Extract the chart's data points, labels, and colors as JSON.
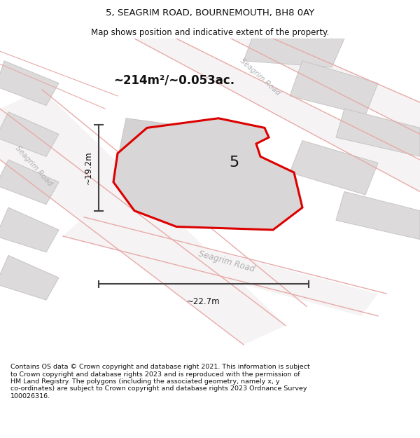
{
  "title_line1": "5, SEAGRIM ROAD, BOURNEMOUTH, BH8 0AY",
  "title_line2": "Map shows position and indicative extent of the property.",
  "area_text": "~214m²/~0.053ac.",
  "label_number": "5",
  "dim_width": "~22.7m",
  "dim_height": "~19.2m",
  "footer_text": "Contains OS data © Crown copyright and database right 2021. This information is subject to Crown copyright and database rights 2023 and is reproduced with the permission of HM Land Registry. The polygons (including the associated geometry, namely x, y co-ordinates) are subject to Crown copyright and database rights 2023 Ordnance Survey 100026316.",
  "map_bg": "#efeded",
  "road_fill_color": "#f5f3f3",
  "building_color": "#dcdada",
  "building_edge": "#c8c4c4",
  "road_line_color": "#e8aaaa",
  "plot_color": "#dd0000",
  "plot_fill": "#d8d6d6",
  "title_bg": "#ffffff",
  "footer_bg": "#ffffff",
  "text_color_dark": "#111111",
  "text_color_gray": "#aaaaaa",
  "dim_color": "#444444",
  "road_label_color": "#b0b0b0"
}
